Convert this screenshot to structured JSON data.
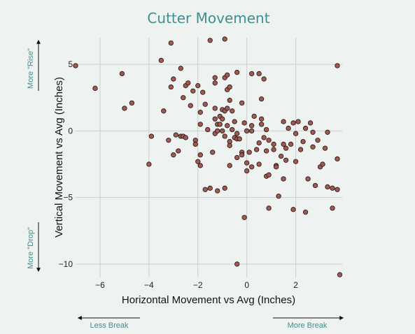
{
  "chart_data": {
    "type": "scatter",
    "title": "Cutter Movement",
    "xlabel": "Horizontal Movement vs Avg (Inches)",
    "ylabel": "Vertical Movement vs Avg (Inches)",
    "xlim": [
      -7,
      3.9
    ],
    "ylim": [
      -11,
      7
    ],
    "x_ticks": [
      -6,
      -4,
      -2,
      0,
      2
    ],
    "y_ticks": [
      5,
      0,
      -5,
      -10
    ],
    "grid": true,
    "annotations": {
      "more_rise": "More \"Rise\"",
      "more_drop": "More \"Drop\"",
      "less_break": "Less Break",
      "more_break": "More Break"
    },
    "colors": {
      "point_fill": "#a05a52",
      "point_stroke": "#2b1a18",
      "title": "#3f8f8e"
    },
    "points": [
      [
        -7.0,
        4.9
      ],
      [
        -6.2,
        3.2
      ],
      [
        -5.1,
        4.3
      ],
      [
        -5.0,
        1.7
      ],
      [
        -4.7,
        2.1
      ],
      [
        -4.0,
        -2.5
      ],
      [
        -3.9,
        -0.4
      ],
      [
        -3.5,
        5.3
      ],
      [
        -3.4,
        1.5
      ],
      [
        -3.2,
        -0.7
      ],
      [
        -3.1,
        6.6
      ],
      [
        -3.1,
        3.3
      ],
      [
        -3.0,
        3.9
      ],
      [
        -3.0,
        -1.8
      ],
      [
        -2.9,
        -0.3
      ],
      [
        -2.8,
        -1.5
      ],
      [
        -2.7,
        4.7
      ],
      [
        -2.7,
        -0.4
      ],
      [
        -2.6,
        2.5
      ],
      [
        -2.6,
        -0.4
      ],
      [
        -2.5,
        3.4
      ],
      [
        -2.5,
        -0.5
      ],
      [
        -2.4,
        3.6
      ],
      [
        -2.3,
        1.9
      ],
      [
        -2.2,
        3.0
      ],
      [
        -2.1,
        -0.7
      ],
      [
        -2.1,
        -1.0
      ],
      [
        -2.0,
        -2.3
      ],
      [
        -2.0,
        3.4
      ],
      [
        -1.9,
        1.4
      ],
      [
        -1.9,
        0.5
      ],
      [
        -1.9,
        -1.8
      ],
      [
        -1.9,
        -2.6
      ],
      [
        -1.8,
        2.9
      ],
      [
        -1.7,
        2.0
      ],
      [
        -1.7,
        -4.4
      ],
      [
        -1.6,
        0.1
      ],
      [
        -1.5,
        6.8
      ],
      [
        -1.5,
        -4.3
      ],
      [
        -1.4,
        -1.6
      ],
      [
        -1.3,
        4.0
      ],
      [
        -1.3,
        3.6
      ],
      [
        -1.3,
        1.7
      ],
      [
        -1.3,
        0.9
      ],
      [
        -1.3,
        -0.2
      ],
      [
        -1.2,
        0.5
      ],
      [
        -1.2,
        0.0
      ],
      [
        -1.2,
        -4.5
      ],
      [
        -1.1,
        1.1
      ],
      [
        -1.1,
        0.5
      ],
      [
        -1.0,
        1.6
      ],
      [
        -1.0,
        0.9
      ],
      [
        -1.0,
        0.0
      ],
      [
        -0.9,
        4.0
      ],
      [
        -0.9,
        1.5
      ],
      [
        -0.9,
        -0.4
      ],
      [
        -0.9,
        -4.3
      ],
      [
        -0.9,
        6.9
      ],
      [
        -0.8,
        4.2
      ],
      [
        -0.8,
        3.1
      ],
      [
        -0.8,
        1.7
      ],
      [
        -0.8,
        0.4
      ],
      [
        -0.7,
        3.3
      ],
      [
        -0.7,
        2.3
      ],
      [
        -0.7,
        -0.8
      ],
      [
        -0.7,
        -1.1
      ],
      [
        -0.7,
        -2.6
      ],
      [
        -0.6,
        1.5
      ],
      [
        -0.6,
        0.1
      ],
      [
        -0.5,
        0.7
      ],
      [
        -0.5,
        -0.5
      ],
      [
        -0.4,
        4.4
      ],
      [
        -0.4,
        -0.2
      ],
      [
        -0.4,
        -0.6
      ],
      [
        -0.4,
        -2.0
      ],
      [
        -0.4,
        -10.0
      ],
      [
        -0.3,
        -0.6
      ],
      [
        -0.2,
        2.1
      ],
      [
        -0.2,
        -1.6
      ],
      [
        -0.2,
        -1.8
      ],
      [
        -0.1,
        0.6
      ],
      [
        -0.1,
        -6.5
      ],
      [
        0.0,
        0.0
      ],
      [
        0.0,
        -2.4
      ],
      [
        0.0,
        -3.0
      ],
      [
        0.1,
        -1.6
      ],
      [
        0.2,
        4.3
      ],
      [
        0.2,
        0.4
      ],
      [
        0.2,
        0.0
      ],
      [
        0.2,
        -2.7
      ],
      [
        0.3,
        1.1
      ],
      [
        0.4,
        -1.4
      ],
      [
        0.5,
        4.3
      ],
      [
        0.5,
        -2.5
      ],
      [
        0.5,
        -0.9
      ],
      [
        0.6,
        2.4
      ],
      [
        0.6,
        0.9
      ],
      [
        0.6,
        0.5
      ],
      [
        0.7,
        3.9
      ],
      [
        0.7,
        -0.5
      ],
      [
        0.8,
        -1.5
      ],
      [
        0.8,
        -3.4
      ],
      [
        0.8,
        0.1
      ],
      [
        0.9,
        -0.7
      ],
      [
        0.9,
        -5.8
      ],
      [
        0.9,
        -3.3
      ],
      [
        1.1,
        -1.0
      ],
      [
        1.1,
        -1.4
      ],
      [
        1.2,
        -2.6
      ],
      [
        1.2,
        -2.7
      ],
      [
        1.3,
        -4.9
      ],
      [
        1.4,
        -1.9
      ],
      [
        1.5,
        -1.0
      ],
      [
        1.5,
        0.7
      ],
      [
        1.5,
        -3.6
      ],
      [
        1.6,
        -1.3
      ],
      [
        1.6,
        -2.2
      ],
      [
        1.7,
        0.2
      ],
      [
        1.8,
        -1.0
      ],
      [
        1.9,
        0.6
      ],
      [
        1.9,
        -5.9
      ],
      [
        2.0,
        -0.2
      ],
      [
        2.0,
        -2.3
      ],
      [
        2.1,
        0.7
      ],
      [
        2.2,
        -1.4
      ],
      [
        2.3,
        -0.8
      ],
      [
        2.4,
        -6.1
      ],
      [
        2.4,
        0.2
      ],
      [
        2.5,
        -3.6
      ],
      [
        2.6,
        0.6
      ],
      [
        2.7,
        -0.1
      ],
      [
        2.7,
        -1.2
      ],
      [
        2.8,
        -4.1
      ],
      [
        2.9,
        -0.7
      ],
      [
        3.0,
        -2.7
      ],
      [
        3.1,
        -2.5
      ],
      [
        3.2,
        -1.3
      ],
      [
        3.3,
        -0.1
      ],
      [
        3.3,
        -4.2
      ],
      [
        3.5,
        -4.3
      ],
      [
        3.5,
        -5.8
      ],
      [
        3.7,
        -2.1
      ],
      [
        3.7,
        -4.4
      ],
      [
        3.7,
        4.9
      ],
      [
        3.8,
        -10.8
      ]
    ]
  }
}
